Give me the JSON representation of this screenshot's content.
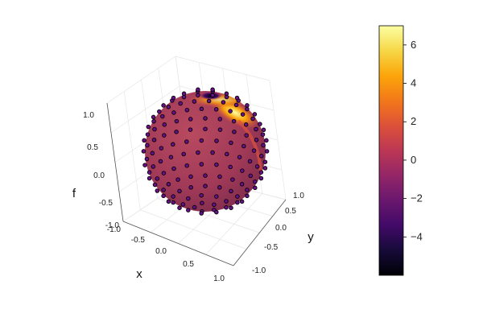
{
  "chart_data": {
    "type": "scatter",
    "subtype": "3d-surface-with-markers",
    "title": "",
    "axes": {
      "x": {
        "label": "x",
        "range": [
          -1.0,
          1.0
        ],
        "ticks": [
          "-1.0",
          "-0.5",
          "0.0",
          "0.5",
          "1.0"
        ]
      },
      "y": {
        "label": "y",
        "range": [
          -1.0,
          1.0
        ],
        "ticks": [
          "-1.0",
          "-0.5",
          "0.0",
          "0.5",
          "1.0"
        ]
      },
      "z": {
        "label": "f",
        "range": [
          -1.0,
          1.0
        ],
        "ticks": [
          "-1.0",
          "-0.5",
          "0.0",
          "0.5",
          "1.0"
        ]
      }
    },
    "surface": {
      "shape": "unit sphere",
      "colormap": "inferno",
      "background_value": 0,
      "hot_spot_value": 7,
      "cold_spot_value": -6
    },
    "markers": {
      "color": "#6a0f8a",
      "edge": "#000000"
    },
    "colorbar": {
      "range": [
        -6,
        7
      ],
      "ticks": [
        "6",
        "4",
        "2",
        "0",
        "−2",
        "−4"
      ],
      "tick_values": [
        6,
        4,
        2,
        0,
        -2,
        -4
      ],
      "placement": "right"
    },
    "grid": true
  }
}
